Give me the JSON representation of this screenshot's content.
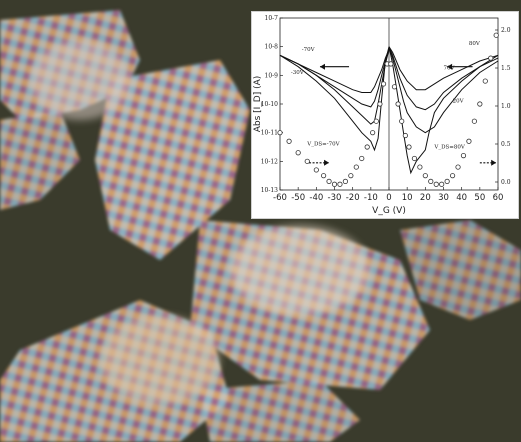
{
  "background_photo": {
    "colors": {
      "base": "#3a3b2c",
      "crystal_a": "#c9c3b6",
      "crystal_b": "#8fb7c9",
      "crystal_c": "#d7a36d",
      "crystal_d": "#a06a8f"
    }
  },
  "chart_data": {
    "type": "line",
    "title": "",
    "xlabel": "V_G (V)",
    "ylabel": "Abs [I_D] (A)",
    "xlim": [
      -60,
      60
    ],
    "ylim_log10": [
      -13,
      -7
    ],
    "y_scale": "log",
    "x_ticks": [
      "-60",
      "-50",
      "-40",
      "-30",
      "-20",
      "-10",
      "0",
      "10",
      "20",
      "30",
      "40",
      "50",
      "60"
    ],
    "y_ticks": [
      "10^-13",
      "10^-12",
      "10^-11",
      "10^-10",
      "10^-9",
      "10^-8",
      "10^-7"
    ],
    "right_ticks": [
      "0.0",
      "0.5",
      "1.0",
      "1.5",
      "2.0"
    ],
    "annotations": [
      "-70V",
      "-30V",
      "V_DS=-70V",
      "80V",
      "70V",
      "20V",
      "V_DS=80V"
    ],
    "series": [
      {
        "side": "p",
        "x": [
          -60,
          -50,
          -40,
          -30,
          -20,
          -15,
          -10,
          -8,
          -6,
          -4,
          -2,
          0
        ],
        "y": [
          -8.3,
          -8.7,
          -9.2,
          -9.8,
          -10.6,
          -11.0,
          -11.3,
          -11.6,
          -11.2,
          -9.8,
          -8.5,
          -8.0
        ]
      },
      {
        "side": "p",
        "x": [
          -60,
          -50,
          -40,
          -30,
          -20,
          -15,
          -10,
          -8,
          -6,
          -4,
          -2,
          0
        ],
        "y": [
          -8.3,
          -8.6,
          -9.0,
          -9.5,
          -10.1,
          -10.4,
          -10.7,
          -10.6,
          -10.0,
          -9.3,
          -8.6,
          -8.1
        ]
      },
      {
        "side": "p",
        "x": [
          -60,
          -50,
          -40,
          -30,
          -20,
          -15,
          -10,
          -8,
          -6,
          -4,
          -2,
          0
        ],
        "y": [
          -8.3,
          -8.6,
          -9.0,
          -9.4,
          -9.8,
          -10.0,
          -10.1,
          -9.9,
          -9.5,
          -9.0,
          -8.5,
          -8.1
        ]
      },
      {
        "side": "p",
        "x": [
          -60,
          -50,
          -40,
          -30,
          -20,
          -15,
          -10,
          -8,
          -6,
          -4,
          -2,
          0
        ],
        "y": [
          -8.3,
          -8.6,
          -8.9,
          -9.2,
          -9.5,
          -9.6,
          -9.6,
          -9.4,
          -9.1,
          -8.8,
          -8.4,
          -8.1
        ]
      },
      {
        "side": "n",
        "x": [
          0,
          2,
          4,
          6,
          8,
          10,
          12,
          15,
          20,
          22,
          25,
          30,
          40,
          50,
          60
        ],
        "y": [
          -8.0,
          -8.6,
          -9.4,
          -10.2,
          -11.0,
          -11.8,
          -12.4,
          -12.0,
          -11.6,
          -11.0,
          -10.3,
          -9.8,
          -9.2,
          -8.7,
          -8.3
        ]
      },
      {
        "side": "n",
        "x": [
          0,
          2,
          4,
          6,
          8,
          10,
          15,
          20,
          25,
          30,
          40,
          50,
          60
        ],
        "y": [
          -8.0,
          -8.4,
          -8.9,
          -9.4,
          -9.9,
          -10.3,
          -10.8,
          -11.0,
          -10.8,
          -10.3,
          -9.5,
          -8.9,
          -8.5
        ]
      },
      {
        "side": "n",
        "x": [
          0,
          2,
          4,
          6,
          8,
          10,
          15,
          20,
          25,
          30,
          40,
          50,
          60
        ],
        "y": [
          -8.0,
          -8.3,
          -8.7,
          -9.1,
          -9.4,
          -9.7,
          -10.1,
          -10.2,
          -10.0,
          -9.6,
          -9.1,
          -8.7,
          -8.4
        ]
      },
      {
        "side": "n",
        "x": [
          0,
          2,
          4,
          6,
          8,
          10,
          15,
          20,
          25,
          30,
          40,
          50,
          60
        ],
        "y": [
          -8.0,
          -8.2,
          -8.5,
          -8.8,
          -9.0,
          -9.2,
          -9.5,
          -9.5,
          -9.3,
          -9.1,
          -8.8,
          -8.5,
          -8.3
        ]
      }
    ],
    "markers_left": {
      "x": [
        -60,
        -55,
        -50,
        -45,
        -40,
        -36,
        -33,
        -30,
        -27,
        -24,
        -21,
        -18,
        -15,
        -12,
        -9,
        -7,
        -5,
        -3,
        -1
      ],
      "y": [
        -11.0,
        -11.3,
        -11.7,
        -12.0,
        -12.3,
        -12.5,
        -12.7,
        -12.8,
        -12.8,
        -12.7,
        -12.5,
        -12.2,
        -11.9,
        -11.5,
        -11.0,
        -10.6,
        -10.0,
        -9.3,
        -8.6
      ]
    },
    "markers_right": {
      "x": [
        1,
        3,
        5,
        7,
        9,
        11,
        14,
        17,
        20,
        23,
        26,
        29,
        32,
        35,
        38,
        41,
        44,
        47,
        50,
        53,
        56,
        59
      ],
      "y": [
        -8.6,
        -9.4,
        -10.0,
        -10.6,
        -11.1,
        -11.5,
        -11.9,
        -12.2,
        -12.5,
        -12.7,
        -12.8,
        -12.8,
        -12.7,
        -12.5,
        -12.2,
        -11.8,
        -11.3,
        -10.6,
        -10.0,
        -9.2,
        -8.4,
        -7.6
      ]
    }
  }
}
